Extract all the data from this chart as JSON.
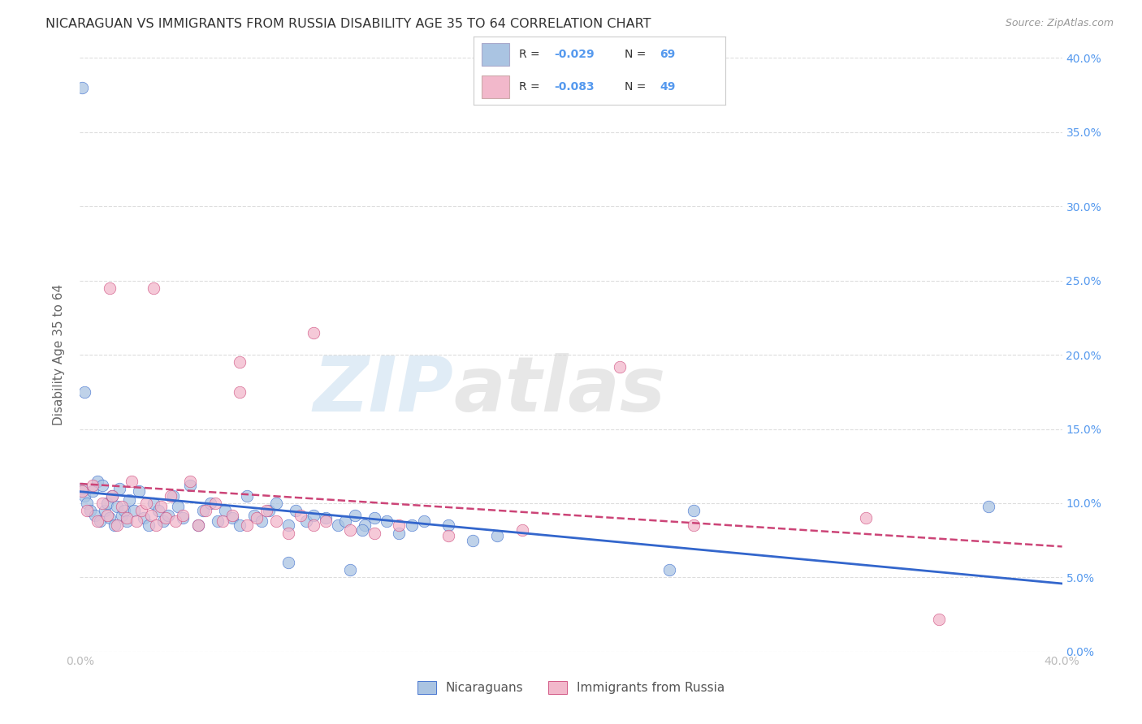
{
  "title": "NICARAGUAN VS IMMIGRANTS FROM RUSSIA DISABILITY AGE 35 TO 64 CORRELATION CHART",
  "source": "Source: ZipAtlas.com",
  "ylabel": "Disability Age 35 to 64",
  "R_nicaraguan": -0.029,
  "N_nicaraguan": 69,
  "R_russia": -0.083,
  "N_russia": 49,
  "color_nicaraguan": "#aac4e2",
  "color_russia": "#f2b8cb",
  "line_color_nicaraguan": "#3366cc",
  "line_color_russia": "#cc4477",
  "xlim": [
    0.0,
    0.4
  ],
  "ylim": [
    0.0,
    0.4
  ],
  "xticks": [
    0.0,
    0.05,
    0.1,
    0.15,
    0.2,
    0.25,
    0.3,
    0.35,
    0.4
  ],
  "yticks": [
    0.0,
    0.05,
    0.1,
    0.15,
    0.2,
    0.25,
    0.3,
    0.35,
    0.4
  ],
  "ytick_labels_right": [
    "0.0%",
    "5.0%",
    "10.0%",
    "15.0%",
    "20.0%",
    "25.0%",
    "30.0%",
    "35.0%",
    "40.0%"
  ],
  "xtick_labels": [
    "0.0%",
    "",
    "",
    "",
    "",
    "",
    "",
    "",
    "40.0%"
  ],
  "watermark_zip": "ZIP",
  "watermark_atlas": "atlas",
  "background_color": "#ffffff",
  "grid_color": "#dddddd",
  "title_color": "#333333",
  "axis_label_color": "#666666",
  "tick_color_right": "#5599ee",
  "tick_color_bottom": "#bbbbbb",
  "nicaraguan_x": [
    0.001,
    0.002,
    0.003,
    0.004,
    0.005,
    0.006,
    0.007,
    0.008,
    0.009,
    0.01,
    0.011,
    0.012,
    0.013,
    0.014,
    0.015,
    0.016,
    0.017,
    0.018,
    0.019,
    0.02,
    0.022,
    0.024,
    0.026,
    0.028,
    0.03,
    0.032,
    0.034,
    0.036,
    0.038,
    0.04,
    0.042,
    0.045,
    0.048,
    0.05,
    0.053,
    0.056,
    0.059,
    0.062,
    0.065,
    0.068,
    0.071,
    0.074,
    0.077,
    0.08,
    0.085,
    0.088,
    0.092,
    0.095,
    0.1,
    0.105,
    0.108,
    0.112,
    0.116,
    0.12,
    0.125,
    0.13,
    0.135,
    0.14,
    0.15,
    0.16,
    0.17,
    0.002,
    0.115,
    0.25,
    0.37,
    0.001,
    0.085,
    0.11,
    0.24
  ],
  "nicaraguan_y": [
    0.11,
    0.105,
    0.1,
    0.095,
    0.108,
    0.092,
    0.115,
    0.088,
    0.112,
    0.095,
    0.1,
    0.09,
    0.105,
    0.085,
    0.098,
    0.11,
    0.092,
    0.095,
    0.088,
    0.102,
    0.095,
    0.108,
    0.09,
    0.085,
    0.1,
    0.095,
    0.088,
    0.092,
    0.105,
    0.098,
    0.09,
    0.112,
    0.085,
    0.095,
    0.1,
    0.088,
    0.095,
    0.09,
    0.085,
    0.105,
    0.092,
    0.088,
    0.095,
    0.1,
    0.085,
    0.095,
    0.088,
    0.092,
    0.09,
    0.085,
    0.088,
    0.092,
    0.085,
    0.09,
    0.088,
    0.08,
    0.085,
    0.088,
    0.085,
    0.075,
    0.078,
    0.175,
    0.082,
    0.095,
    0.098,
    0.38,
    0.06,
    0.055,
    0.055
  ],
  "russia_x": [
    0.001,
    0.003,
    0.005,
    0.007,
    0.009,
    0.011,
    0.013,
    0.015,
    0.017,
    0.019,
    0.021,
    0.023,
    0.025,
    0.027,
    0.029,
    0.031,
    0.033,
    0.035,
    0.037,
    0.039,
    0.042,
    0.045,
    0.048,
    0.051,
    0.055,
    0.058,
    0.062,
    0.065,
    0.068,
    0.072,
    0.076,
    0.08,
    0.085,
    0.09,
    0.095,
    0.1,
    0.11,
    0.12,
    0.13,
    0.15,
    0.18,
    0.25,
    0.32,
    0.03,
    0.065,
    0.095,
    0.22,
    0.012,
    0.35
  ],
  "russia_y": [
    0.108,
    0.095,
    0.112,
    0.088,
    0.1,
    0.092,
    0.105,
    0.085,
    0.098,
    0.09,
    0.115,
    0.088,
    0.095,
    0.1,
    0.092,
    0.085,
    0.098,
    0.09,
    0.105,
    0.088,
    0.092,
    0.115,
    0.085,
    0.095,
    0.1,
    0.088,
    0.092,
    0.175,
    0.085,
    0.09,
    0.095,
    0.088,
    0.08,
    0.092,
    0.085,
    0.088,
    0.082,
    0.08,
    0.085,
    0.078,
    0.082,
    0.085,
    0.09,
    0.245,
    0.195,
    0.215,
    0.192,
    0.245,
    0.022
  ],
  "legend_R_color": "#5599ee",
  "legend_N_color": "#5599ee"
}
